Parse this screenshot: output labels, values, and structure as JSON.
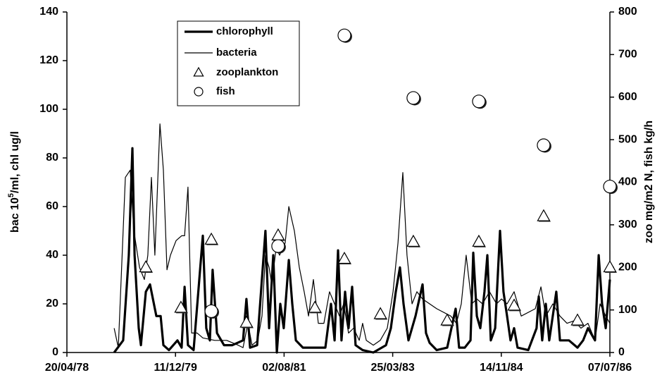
{
  "chart_data": {
    "type": "line",
    "ylabel": [
      "bac 10",
      "5",
      "/ml, chl ug/l"
    ],
    "y2label": "zoo mg/m2 N, fish kg/h",
    "xlim": [
      0,
      3000
    ],
    "xticks": [
      {
        "value": 0,
        "label": "20/04/78"
      },
      {
        "value": 600,
        "label": "11/12/79"
      },
      {
        "value": 1200,
        "label": "02/08/81"
      },
      {
        "value": 1800,
        "label": "25/03/83"
      },
      {
        "value": 2400,
        "label": "14/11/84"
      },
      {
        "value": 3000,
        "label": "07/07/86"
      }
    ],
    "ylim": [
      0,
      140
    ],
    "yticks": [
      0,
      20,
      40,
      60,
      80,
      100,
      120,
      140
    ],
    "y2lim": [
      0,
      800
    ],
    "y2ticks": [
      0,
      100,
      200,
      300,
      400,
      500,
      600,
      700,
      800
    ],
    "series": [
      {
        "name": "chlorophyll",
        "color": "#000000",
        "line_width": 3.2,
        "x": [
          261,
          311,
          342,
          362,
          374,
          397,
          409,
          436,
          459,
          494,
          518,
          533,
          564,
          611,
          634,
          650,
          669,
          700,
          751,
          770,
          790,
          805,
          829,
          868,
          914,
          973,
          992,
          1012,
          1051,
          1097,
          1117,
          1140,
          1160,
          1179,
          1198,
          1226,
          1245,
          1265,
          1304,
          1362,
          1428,
          1459,
          1479,
          1498,
          1517,
          1537,
          1556,
          1576,
          1595,
          1634,
          1693,
          1763,
          1790,
          1817,
          1840,
          1860,
          1887,
          1926,
          1965,
          1984,
          2004,
          2043,
          2101,
          2148,
          2167,
          2198,
          2230,
          2245,
          2265,
          2284,
          2307,
          2323,
          2342,
          2366,
          2393,
          2412,
          2432,
          2451,
          2471,
          2490,
          2549,
          2595,
          2607,
          2626,
          2646,
          2665,
          2704,
          2724,
          2774,
          2821,
          2852,
          2879,
          2918,
          2938,
          2957,
          2977,
          3000
        ],
        "values": [
          0,
          5,
          40,
          84,
          40,
          10,
          3,
          25,
          28,
          15,
          15,
          3,
          1,
          5,
          2,
          27,
          3,
          1,
          48,
          10,
          5,
          34,
          8,
          3,
          3,
          5,
          22,
          2,
          3,
          50,
          10,
          40,
          0,
          20,
          10,
          38,
          20,
          5,
          2,
          2,
          2,
          20,
          5,
          42,
          5,
          25,
          10,
          27,
          3,
          1,
          0,
          3,
          10,
          25,
          35,
          20,
          5,
          15,
          28,
          8,
          4,
          1,
          2,
          18,
          2,
          2,
          5,
          41,
          15,
          10,
          25,
          40,
          5,
          10,
          50,
          25,
          15,
          5,
          10,
          2,
          1,
          10,
          23,
          5,
          20,
          5,
          25,
          5,
          5,
          2,
          5,
          10,
          5,
          40,
          20,
          10,
          30
        ]
      },
      {
        "name": "bacteria",
        "color": "#000000",
        "line_width": 1.2,
        "x": [
          261,
          284,
          323,
          350,
          370,
          401,
          428,
          447,
          467,
          486,
          514,
          533,
          553,
          572,
          603,
          634,
          650,
          669,
          689,
          720,
          751,
          817,
          883,
          946,
          973,
          1000,
          1023,
          1054,
          1078,
          1097,
          1117,
          1132,
          1156,
          1175,
          1206,
          1226,
          1257,
          1284,
          1311,
          1335,
          1362,
          1389,
          1420,
          1451,
          1479,
          1506,
          1529,
          1556,
          1584,
          1615,
          1634,
          1654,
          1693,
          1731,
          1770,
          1802,
          1829,
          1856,
          1879,
          1907,
          1934,
          1965,
          2043,
          2121,
          2152,
          2179,
          2206,
          2237,
          2265,
          2296,
          2335,
          2374,
          2401,
          2432,
          2471,
          2510,
          2588,
          2619,
          2646,
          2685,
          2724,
          2763,
          2802,
          2840,
          2879,
          2918,
          2946,
          2977,
          3000
        ],
        "values": [
          10,
          2,
          72,
          75,
          50,
          35,
          30,
          40,
          72,
          40,
          94,
          75,
          34,
          40,
          46,
          48,
          48,
          68,
          8,
          8,
          6,
          5,
          5,
          3,
          2,
          12,
          3,
          5,
          15,
          40,
          35,
          28,
          43,
          40,
          45,
          60,
          50,
          35,
          25,
          15,
          30,
          12,
          12,
          25,
          20,
          15,
          20,
          8,
          10,
          5,
          12,
          5,
          3,
          5,
          10,
          25,
          45,
          74,
          40,
          20,
          25,
          22,
          18,
          15,
          12,
          20,
          40,
          20,
          22,
          20,
          25,
          20,
          22,
          20,
          25,
          15,
          18,
          27,
          15,
          20,
          15,
          12,
          13,
          10,
          12,
          5,
          20,
          15,
          12
        ]
      },
      {
        "name": "zooplankton",
        "color": "#000000",
        "marker": "triangle",
        "axis": "y2",
        "x": [
          436,
          630,
          798,
          992,
          1167,
          1370,
          1533,
          1732,
          1914,
          2101,
          2276,
          2471,
          2634,
          2821,
          3000
        ],
        "values": [
          200,
          105,
          265,
          70,
          275,
          105,
          220,
          90,
          260,
          75,
          260,
          110,
          320,
          75,
          200
        ]
      },
      {
        "name": "fish",
        "color": "#000000",
        "marker": "circle",
        "axis": "y2",
        "x": [
          798,
          1167,
          1533,
          1914,
          2276,
          2634,
          3000
        ],
        "values": [
          97,
          250,
          745,
          598,
          590,
          487,
          390
        ]
      }
    ]
  }
}
